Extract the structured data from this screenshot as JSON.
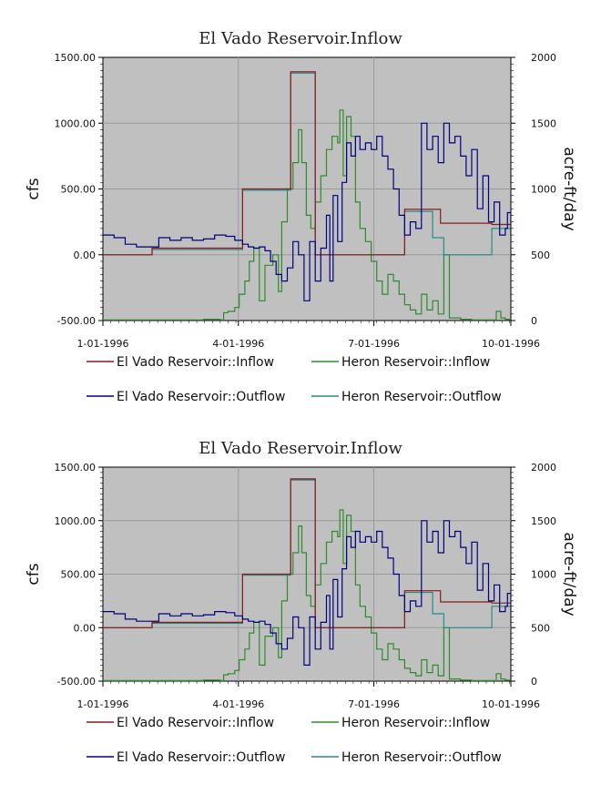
{
  "chart_data": [
    {
      "type": "line",
      "title": "El Vado Reservoir.Inflow",
      "ylabel": "cfs",
      "y2label": "acre-ft/day",
      "ylim": [
        -500,
        1500
      ],
      "y2lim": [
        0,
        2000
      ],
      "yticks": [
        "1500.00",
        "1000.00",
        "500.00",
        "0.00",
        "-500.00"
      ],
      "y2ticks": [
        "2000",
        "1500",
        "1000",
        "500",
        "0"
      ],
      "xticks": [
        "1-01-1996",
        "4-01-1996",
        "7-01-1996",
        "10-01-1996"
      ],
      "grid": true,
      "legend": "bottom",
      "series": [
        {
          "name": "El Vado Reservoir::Inflow",
          "color": "#8b1a1a",
          "x": [
            0,
            44,
            44,
            125,
            125,
            168,
            168,
            190,
            190,
            270,
            270,
            302,
            302,
            348,
            348,
            365
          ],
          "y": [
            0,
            0,
            50,
            50,
            500,
            500,
            1390,
            1390,
            0,
            0,
            345,
            345,
            240,
            240,
            230,
            230
          ]
        },
        {
          "name": "Heron Reservoir::Inflow",
          "color": "#2e8b2e",
          "x": [
            0,
            60,
            90,
            105,
            108,
            112,
            118,
            122,
            127,
            131,
            135,
            140,
            145,
            152,
            157,
            160,
            165,
            170,
            175,
            178,
            182,
            186,
            190,
            195,
            200,
            205,
            210,
            212,
            215,
            218,
            222,
            226,
            230,
            235,
            240,
            245,
            250,
            255,
            260,
            265,
            270,
            275,
            280,
            285,
            290,
            295,
            300,
            305,
            310,
            320,
            330,
            340,
            348,
            352,
            356,
            360,
            365
          ],
          "y": [
            -495,
            -495,
            -490,
            -495,
            -440,
            -430,
            -400,
            -300,
            -200,
            -50,
            50,
            -350,
            -80,
            0,
            -280,
            250,
            500,
            700,
            950,
            700,
            300,
            200,
            400,
            600,
            800,
            900,
            850,
            1100,
            600,
            1050,
            900,
            400,
            200,
            100,
            -50,
            -200,
            -300,
            -150,
            -200,
            -300,
            -380,
            -420,
            -450,
            -300,
            -420,
            -350,
            -450,
            0,
            -480,
            -490,
            -495,
            -495,
            -495,
            -430,
            -480,
            -490,
            -495
          ]
        },
        {
          "name": "El Vado Reservoir::Outflow",
          "color": "#000080",
          "x": [
            0,
            10,
            20,
            30,
            40,
            50,
            60,
            70,
            80,
            90,
            100,
            110,
            118,
            125,
            130,
            135,
            140,
            145,
            150,
            155,
            160,
            165,
            170,
            175,
            180,
            185,
            190,
            195,
            200,
            203,
            206,
            210,
            214,
            218,
            222,
            226,
            230,
            235,
            240,
            245,
            250,
            255,
            260,
            265,
            270,
            275,
            280,
            285,
            290,
            295,
            300,
            305,
            310,
            315,
            320,
            325,
            330,
            335,
            340,
            345,
            350,
            355,
            360,
            362,
            365
          ],
          "y": [
            150,
            130,
            80,
            60,
            60,
            130,
            110,
            130,
            110,
            120,
            150,
            140,
            110,
            80,
            60,
            50,
            60,
            30,
            -50,
            -150,
            -200,
            -100,
            100,
            0,
            -350,
            100,
            -200,
            50,
            300,
            -200,
            450,
            100,
            550,
            850,
            750,
            900,
            800,
            850,
            800,
            900,
            750,
            650,
            500,
            300,
            150,
            250,
            200,
            1000,
            800,
            900,
            700,
            1000,
            850,
            900,
            750,
            600,
            800,
            350,
            600,
            250,
            400,
            150,
            200,
            320,
            150
          ]
        },
        {
          "name": "Heron Reservoir::Outflow",
          "color": "#2a8a8a",
          "x": [
            0,
            44,
            44,
            125,
            125,
            168,
            168,
            190,
            190,
            270,
            270,
            295,
            295,
            305,
            305,
            325,
            325,
            348,
            348,
            365
          ],
          "y": [
            0,
            0,
            40,
            40,
            490,
            490,
            1380,
            1380,
            0,
            0,
            330,
            330,
            130,
            130,
            0,
            0,
            0,
            0,
            200,
            200
          ]
        }
      ]
    },
    {
      "type": "line",
      "title": "El Vado Reservoir.Inflow",
      "ylabel": "cfs",
      "y2label": "acre-ft/day",
      "ylim": [
        -500,
        1500
      ],
      "y2lim": [
        0,
        2000
      ],
      "yticks": [
        "1500.00",
        "1000.00",
        "500.00",
        "0.00",
        "-500.00"
      ],
      "y2ticks": [
        "2000",
        "1500",
        "1000",
        "500",
        "0"
      ],
      "xticks": [
        "1-01-1996",
        "4-01-1996",
        "7-01-1996",
        "10-01-1996"
      ],
      "grid": true,
      "legend": "bottom",
      "series": [
        {
          "name": "El Vado Reservoir::Inflow",
          "color": "#8b1a1a",
          "x": [
            0,
            44,
            44,
            125,
            125,
            168,
            168,
            190,
            190,
            270,
            270,
            302,
            302,
            348,
            348,
            365
          ],
          "y": [
            0,
            0,
            50,
            50,
            500,
            500,
            1390,
            1390,
            0,
            0,
            345,
            345,
            240,
            240,
            230,
            230
          ]
        },
        {
          "name": "Heron Reservoir::Inflow",
          "color": "#2e8b2e",
          "x": [
            0,
            60,
            90,
            105,
            108,
            112,
            118,
            122,
            127,
            131,
            135,
            140,
            145,
            152,
            157,
            160,
            165,
            170,
            175,
            178,
            182,
            186,
            190,
            195,
            200,
            205,
            210,
            212,
            215,
            218,
            222,
            226,
            230,
            235,
            240,
            245,
            250,
            255,
            260,
            265,
            270,
            275,
            280,
            285,
            290,
            295,
            300,
            305,
            310,
            320,
            330,
            340,
            348,
            352,
            356,
            360,
            365
          ],
          "y": [
            -495,
            -495,
            -490,
            -495,
            -440,
            -430,
            -400,
            -300,
            -200,
            -50,
            50,
            -350,
            -80,
            0,
            -280,
            250,
            500,
            700,
            950,
            700,
            300,
            200,
            400,
            600,
            800,
            900,
            850,
            1100,
            600,
            1050,
            900,
            400,
            200,
            100,
            -50,
            -200,
            -300,
            -150,
            -200,
            -300,
            -380,
            -420,
            -450,
            -300,
            -420,
            -350,
            -450,
            0,
            -480,
            -490,
            -495,
            -495,
            -495,
            -430,
            -480,
            -490,
            -495
          ]
        },
        {
          "name": "El Vado Reservoir::Outflow",
          "color": "#000080",
          "x": [
            0,
            10,
            20,
            30,
            40,
            50,
            60,
            70,
            80,
            90,
            100,
            110,
            118,
            125,
            130,
            135,
            140,
            145,
            150,
            155,
            160,
            165,
            170,
            175,
            180,
            185,
            190,
            195,
            200,
            203,
            206,
            210,
            214,
            218,
            222,
            226,
            230,
            235,
            240,
            245,
            250,
            255,
            260,
            265,
            270,
            275,
            280,
            285,
            290,
            295,
            300,
            305,
            310,
            315,
            320,
            325,
            330,
            335,
            340,
            345,
            350,
            355,
            360,
            362,
            365
          ],
          "y": [
            150,
            130,
            80,
            60,
            60,
            130,
            110,
            130,
            110,
            120,
            150,
            140,
            110,
            80,
            60,
            50,
            60,
            30,
            -50,
            -150,
            -200,
            -100,
            100,
            0,
            -350,
            100,
            -200,
            50,
            300,
            -200,
            450,
            100,
            550,
            850,
            750,
            900,
            800,
            850,
            800,
            900,
            750,
            650,
            500,
            300,
            150,
            250,
            200,
            1000,
            800,
            900,
            700,
            1000,
            850,
            900,
            750,
            600,
            800,
            350,
            600,
            250,
            400,
            150,
            200,
            320,
            150
          ]
        },
        {
          "name": "Heron Reservoir::Outflow",
          "color": "#2a8a8a",
          "x": [
            0,
            44,
            44,
            125,
            125,
            168,
            168,
            190,
            190,
            270,
            270,
            295,
            295,
            305,
            305,
            325,
            325,
            348,
            348,
            365
          ],
          "y": [
            0,
            0,
            40,
            40,
            490,
            490,
            1380,
            1380,
            0,
            0,
            330,
            330,
            130,
            130,
            0,
            0,
            0,
            0,
            200,
            200
          ]
        }
      ]
    }
  ]
}
